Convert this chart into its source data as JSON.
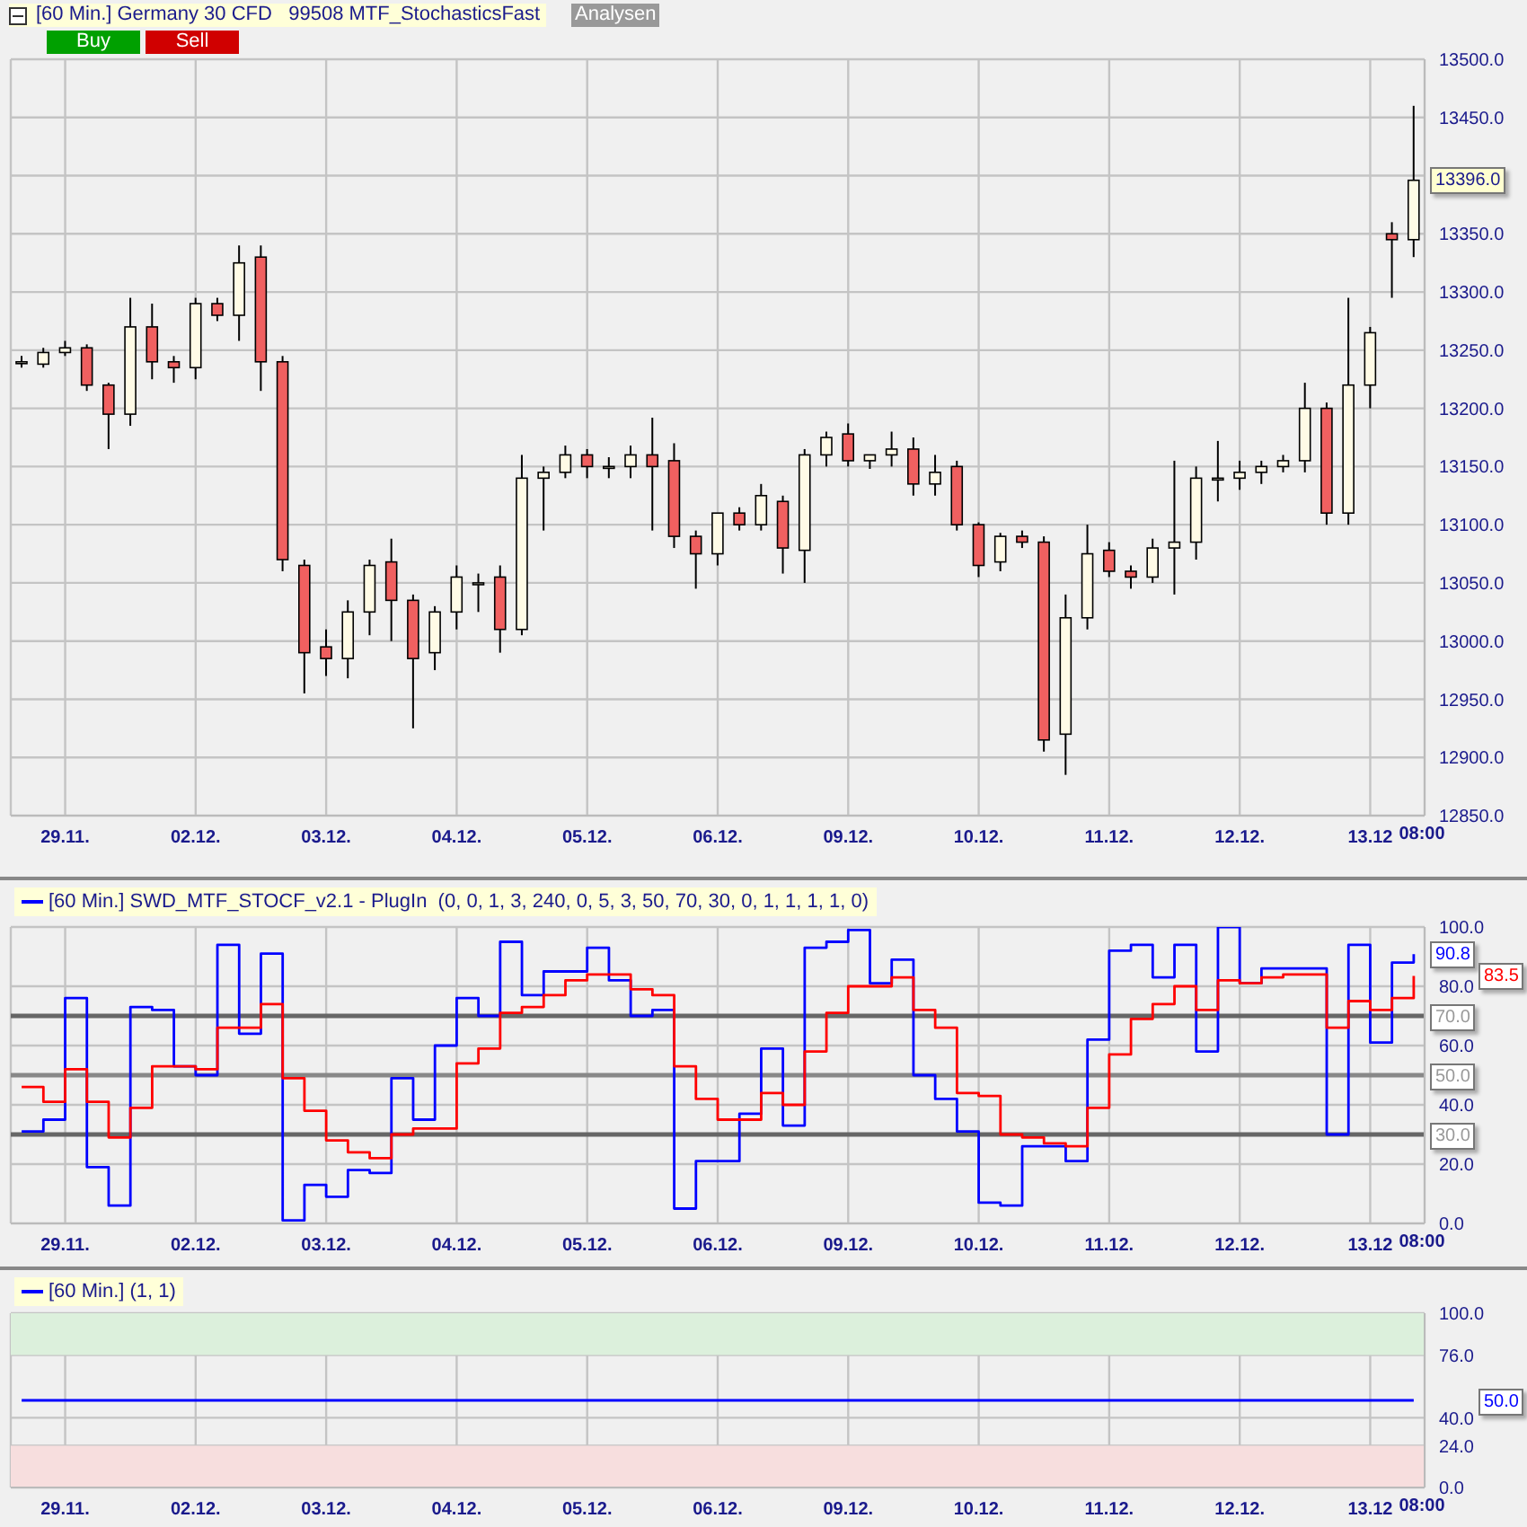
{
  "chart_data": [
    {
      "type": "candlestick",
      "title": "[60 Min.] Germany 30 CFD   99508 MTF_StochasticsFast",
      "categories": [
        null,
        null,
        "29.11.",
        null,
        null,
        null,
        null,
        null,
        "02.12.",
        null,
        null,
        null,
        null,
        null,
        "03.12.",
        null,
        null,
        null,
        null,
        null,
        "04.12.",
        null,
        null,
        null,
        null,
        null,
        "05.12.",
        null,
        null,
        null,
        null,
        null,
        "06.12.",
        null,
        null,
        null,
        null,
        null,
        "09.12.",
        null,
        null,
        null,
        null,
        null,
        "10.12.",
        null,
        null,
        null,
        null,
        null,
        "11.12.",
        null,
        null,
        null,
        null,
        null,
        "12.12.",
        null,
        null,
        null,
        null,
        null,
        "13.12",
        null,
        null
      ],
      "ohlc": [
        [
          13240,
          13245,
          13235,
          13240
        ],
        [
          13238,
          13252,
          13235,
          13248
        ],
        [
          13248,
          13258,
          13245,
          13252
        ],
        [
          13252,
          13255,
          13215,
          13220
        ],
        [
          13220,
          13222,
          13165,
          13195
        ],
        [
          13195,
          13295,
          13185,
          13270
        ],
        [
          13270,
          13290,
          13225,
          13240
        ],
        [
          13240,
          13245,
          13222,
          13235
        ],
        [
          13235,
          13295,
          13225,
          13290
        ],
        [
          13290,
          13295,
          13275,
          13280
        ],
        [
          13280,
          13340,
          13258,
          13325
        ],
        [
          13330,
          13340,
          13215,
          13240
        ],
        [
          13240,
          13245,
          13060,
          13070
        ],
        [
          13065,
          13070,
          12955,
          12990
        ],
        [
          12995,
          13010,
          12970,
          12985
        ],
        [
          12985,
          13035,
          12968,
          13025
        ],
        [
          13025,
          13070,
          13005,
          13065
        ],
        [
          13068,
          13088,
          13000,
          13035
        ],
        [
          13035,
          13040,
          12925,
          12985
        ],
        [
          12990,
          13030,
          12975,
          13025
        ],
        [
          13025,
          13065,
          13010,
          13055
        ],
        [
          13050,
          13058,
          13025,
          13050
        ],
        [
          13055,
          13065,
          12990,
          13010
        ],
        [
          13010,
          13160,
          13005,
          13140
        ],
        [
          13140,
          13150,
          13095,
          13145
        ],
        [
          13145,
          13168,
          13140,
          13160
        ],
        [
          13160,
          13165,
          13140,
          13150
        ],
        [
          13150,
          13158,
          13140,
          13150
        ],
        [
          13150,
          13168,
          13140,
          13160
        ],
        [
          13160,
          13192,
          13095,
          13150
        ],
        [
          13155,
          13170,
          13080,
          13090
        ],
        [
          13090,
          13095,
          13045,
          13075
        ],
        [
          13075,
          13110,
          13065,
          13110
        ],
        [
          13110,
          13115,
          13095,
          13100
        ],
        [
          13100,
          13135,
          13095,
          13125
        ],
        [
          13120,
          13125,
          13058,
          13080
        ],
        [
          13078,
          13165,
          13050,
          13160
        ],
        [
          13160,
          13180,
          13150,
          13175
        ],
        [
          13178,
          13187,
          13150,
          13155
        ],
        [
          13155,
          13160,
          13148,
          13160
        ],
        [
          13160,
          13180,
          13150,
          13165
        ],
        [
          13165,
          13175,
          13125,
          13135
        ],
        [
          13135,
          13160,
          13125,
          13145
        ],
        [
          13150,
          13155,
          13095,
          13100
        ],
        [
          13100,
          13102,
          13055,
          13065
        ],
        [
          13068,
          13093,
          13060,
          13090
        ],
        [
          13090,
          13095,
          13080,
          13085
        ],
        [
          13085,
          13090,
          12905,
          12915
        ],
        [
          12920,
          13040,
          12885,
          13020
        ],
        [
          13020,
          13100,
          13010,
          13075
        ],
        [
          13078,
          13085,
          13055,
          13060
        ],
        [
          13060,
          13065,
          13045,
          13055
        ],
        [
          13055,
          13088,
          13050,
          13080
        ],
        [
          13080,
          13155,
          13040,
          13085
        ],
        [
          13085,
          13150,
          13070,
          13140
        ],
        [
          13140,
          13172,
          13120,
          13140
        ],
        [
          13140,
          13155,
          13130,
          13145
        ],
        [
          13145,
          13155,
          13135,
          13150
        ],
        [
          13150,
          13160,
          13145,
          13155
        ],
        [
          13155,
          13222,
          13145,
          13200
        ],
        [
          13200,
          13205,
          13100,
          13110
        ],
        [
          13110,
          13295,
          13100,
          13220
        ],
        [
          13220,
          13270,
          13200,
          13265
        ],
        [
          13350,
          13360,
          13295,
          13345
        ],
        [
          13345,
          13460,
          13330,
          13396
        ]
      ],
      "ylim": [
        12850,
        13500
      ],
      "yticks": [
        {
          "value": 12850,
          "label": "12850.0"
        },
        {
          "value": 12900,
          "label": "12900.0"
        },
        {
          "value": 12950,
          "label": "12950.0"
        },
        {
          "value": 13000,
          "label": "13000.0"
        },
        {
          "value": 13050,
          "label": "13050.0"
        },
        {
          "value": 13100,
          "label": "13100.0"
        },
        {
          "value": 13150,
          "label": "13150.0"
        },
        {
          "value": 13200,
          "label": "13200.0"
        },
        {
          "value": 13250,
          "label": "13250.0"
        },
        {
          "value": 13300,
          "label": "13300.0"
        },
        {
          "value": 13350,
          "label": "13350.0"
        },
        {
          "value": 13400,
          "label": null
        },
        {
          "value": 13450,
          "label": "13450.0"
        },
        {
          "value": 13500,
          "label": "13500.0"
        }
      ],
      "grid": true,
      "annotations": [
        "08:00",
        "Analysen",
        "Buy",
        "Sell",
        {
          "text": "13396.0",
          "y": 13396
        }
      ]
    },
    {
      "type": "step",
      "categories": [
        null,
        null,
        "29.11.",
        null,
        null,
        null,
        null,
        null,
        "02.12.",
        null,
        null,
        null,
        null,
        null,
        "03.12.",
        null,
        null,
        null,
        null,
        null,
        "04.12.",
        null,
        null,
        null,
        null,
        null,
        "05.12.",
        null,
        null,
        null,
        null,
        null,
        "06.12.",
        null,
        null,
        null,
        null,
        null,
        "09.12.",
        null,
        null,
        null,
        null,
        null,
        "10.12.",
        null,
        null,
        null,
        null,
        null,
        "11.12.",
        null,
        null,
        null,
        null,
        null,
        "12.12.",
        null,
        null,
        null,
        null,
        null,
        "13.12",
        null,
        null
      ],
      "series": [
        {
          "name": "[60 Min.] SWD_MTF_STOCF_v2.1 - PlugIn  (0, 0, 1, 3, 240, 0, 5, 3, 50, 70, 30, 0, 1, 1, 1, 1, 0)",
          "color": "#0000ff",
          "values": [
            31,
            35,
            76,
            19,
            6,
            73,
            72,
            53,
            50,
            94,
            64,
            91,
            1,
            13,
            9,
            18,
            17,
            49,
            35,
            60,
            76,
            70,
            95,
            77,
            85,
            85,
            93,
            82,
            70,
            72,
            5,
            21,
            21,
            37,
            59,
            33,
            93,
            95,
            99,
            81,
            89,
            50,
            42,
            31,
            7,
            6,
            26,
            26,
            21,
            62,
            92,
            94,
            83,
            94,
            58,
            100,
            81,
            86,
            86,
            86,
            30,
            94,
            61,
            88,
            90.8
          ]
        },
        {
          "color": "#ff0000",
          "values": [
            46,
            41,
            52,
            41,
            29,
            39,
            53,
            53,
            52,
            66,
            66,
            74,
            49,
            38,
            28,
            24,
            22,
            30,
            32,
            32,
            54,
            59,
            71,
            73,
            77,
            82,
            84,
            84,
            79,
            77,
            53,
            42,
            35,
            35,
            44,
            40,
            58,
            71,
            80,
            80,
            83,
            72,
            66,
            44,
            43,
            30,
            29,
            27,
            26,
            39,
            57,
            69,
            74,
            80,
            72,
            82,
            81,
            83,
            84,
            84,
            66,
            75,
            72,
            76,
            83.5
          ]
        }
      ],
      "ylim": [
        0,
        100
      ],
      "yticks": [
        {
          "value": 0,
          "label": "0.0"
        },
        {
          "value": 20,
          "label": "20.0"
        },
        {
          "value": 40,
          "label": "40.0"
        },
        {
          "value": 60,
          "label": "60.0"
        },
        {
          "value": 80,
          "label": "80.0"
        },
        {
          "value": 100,
          "label": "100.0"
        }
      ],
      "ref_lines": [
        {
          "axis": "y",
          "value": 70,
          "label": "70.0",
          "color": "#666666"
        },
        {
          "axis": "y",
          "value": 50,
          "label": "50.0",
          "color": "#888888"
        },
        {
          "axis": "y",
          "value": 30,
          "label": "30.0",
          "color": "#666666"
        }
      ],
      "grid": true,
      "legend": "top left",
      "annotations": [
        "08:00",
        "90.8",
        "83.5"
      ]
    },
    {
      "type": "line",
      "categories": [
        null,
        null,
        "29.11.",
        null,
        null,
        null,
        null,
        null,
        "02.12.",
        null,
        null,
        null,
        null,
        null,
        "03.12.",
        null,
        null,
        null,
        null,
        null,
        "04.12.",
        null,
        null,
        null,
        null,
        null,
        "05.12.",
        null,
        null,
        null,
        null,
        null,
        "06.12.",
        null,
        null,
        null,
        null,
        null,
        "09.12.",
        null,
        null,
        null,
        null,
        null,
        "10.12.",
        null,
        null,
        null,
        null,
        null,
        "11.12.",
        null,
        null,
        null,
        null,
        null,
        "12.12.",
        null,
        null,
        null,
        null,
        null,
        "13.12",
        null,
        null
      ],
      "series": [
        {
          "name": "[60 Min.] (1, 1)",
          "color": "#0000ff",
          "values": [
            50,
            50,
            50,
            50,
            50,
            50,
            50,
            50,
            50,
            50,
            50,
            50,
            50,
            50,
            50,
            50,
            50,
            50,
            50,
            50,
            50,
            50,
            50,
            50,
            50,
            50,
            50,
            50,
            50,
            50,
            50,
            50,
            50,
            50,
            50,
            50,
            50,
            50,
            50,
            50,
            50,
            50,
            50,
            50,
            50,
            50,
            50,
            50,
            50,
            50,
            50,
            50,
            50,
            50,
            50,
            50,
            50,
            50,
            50,
            50,
            50,
            50,
            50,
            50,
            50
          ]
        }
      ],
      "ylim": [
        0,
        100
      ],
      "yticks": [
        {
          "value": 0,
          "label": "0.0"
        },
        {
          "value": 24,
          "label": "24.0"
        },
        {
          "value": 40,
          "label": "40.0"
        },
        {
          "value": 76,
          "label": "76.0"
        },
        {
          "value": 100,
          "label": "100.0"
        }
      ],
      "bands": [
        {
          "axis": "y",
          "from": 76,
          "to": 100,
          "color": "#dcf0dc"
        },
        {
          "axis": "y",
          "from": 0,
          "to": 24,
          "color": "#f7dede"
        }
      ],
      "grid": true,
      "legend": "top left",
      "annotations": [
        "08:00",
        "50.0"
      ]
    }
  ]
}
